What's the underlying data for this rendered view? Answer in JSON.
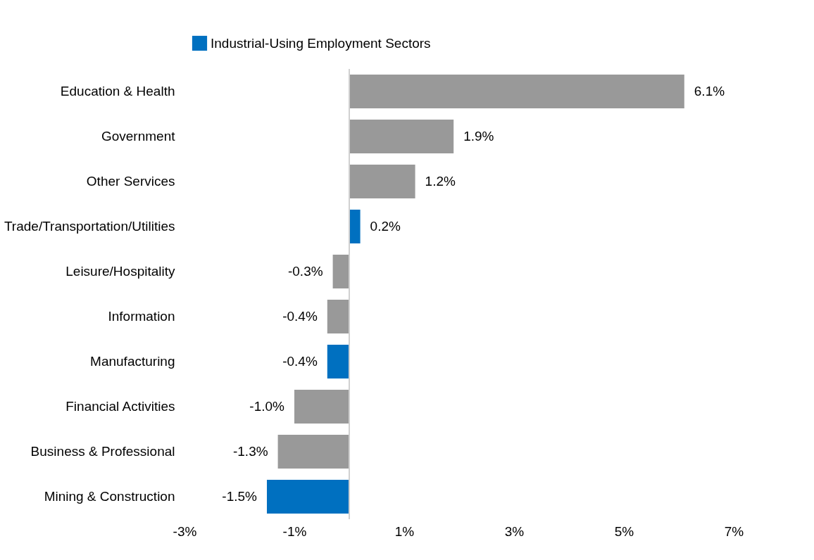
{
  "chart_data": {
    "type": "bar",
    "orientation": "horizontal",
    "legend": "top",
    "categories": [
      "Education & Health",
      "Government",
      "Other Services",
      "Trade/Transportation/Utilities",
      "Leisure/Hospitality",
      "Information",
      "Manufacturing",
      "Financial Activities",
      "Business & Professional",
      "Mining & Construction"
    ],
    "series": [
      {
        "name": "Industrial-Using Employment Sectors",
        "color": "#0070c0",
        "values": [
          null,
          null,
          null,
          0.2,
          null,
          null,
          -0.4,
          null,
          null,
          -1.5
        ],
        "value_labels": [
          null,
          null,
          null,
          "0.2%",
          null,
          null,
          "-0.4%",
          null,
          null,
          "-1.5%"
        ]
      },
      {
        "color": "#999999",
        "values": [
          6.1,
          1.9,
          1.2,
          null,
          -0.3,
          -0.4,
          null,
          -1.0,
          -1.3,
          null
        ],
        "value_labels": [
          "6.1%",
          "1.9%",
          "1.2%",
          null,
          "-0.3%",
          "-0.4%",
          null,
          "-1.0%",
          "-1.3%",
          null
        ]
      }
    ],
    "xlim": [
      -3,
      7
    ],
    "xticks": [
      {
        "value": -3,
        "label": "-3%"
      },
      {
        "value": -1,
        "label": "-1%"
      },
      {
        "value": 1,
        "label": "1%"
      },
      {
        "value": 3,
        "label": "3%"
      },
      {
        "value": 5,
        "label": "5%"
      },
      {
        "value": 7,
        "label": "7%"
      }
    ],
    "grid": false
  }
}
